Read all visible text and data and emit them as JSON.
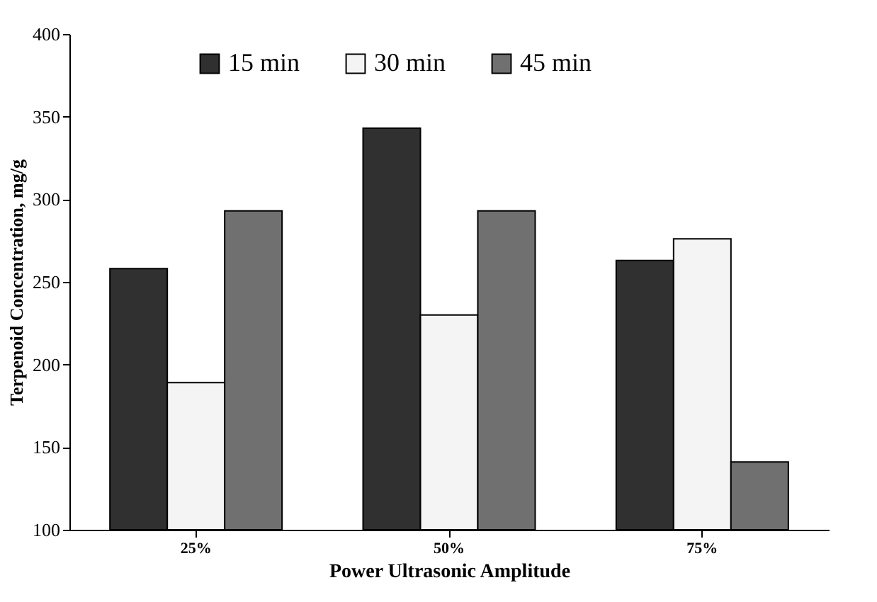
{
  "chart_data": {
    "type": "bar",
    "xlabel": "Power Ultrasonic Amplitude",
    "ylabel": "Terpenoid Concentration, mg/g",
    "categories": [
      "25%",
      "50%",
      "75%"
    ],
    "series": [
      {
        "name": "15 min",
        "color": "#303030",
        "values": [
          258,
          343,
          263
        ]
      },
      {
        "name": "30 min",
        "color": "#f4f4f4",
        "values": [
          189,
          230,
          276
        ]
      },
      {
        "name": "45 min",
        "color": "#707070",
        "values": [
          293,
          293,
          141
        ]
      }
    ],
    "ylim": [
      100,
      400
    ],
    "yticks": [
      100,
      150,
      200,
      250,
      300,
      350,
      400
    ],
    "grid": false,
    "legend": "top"
  }
}
